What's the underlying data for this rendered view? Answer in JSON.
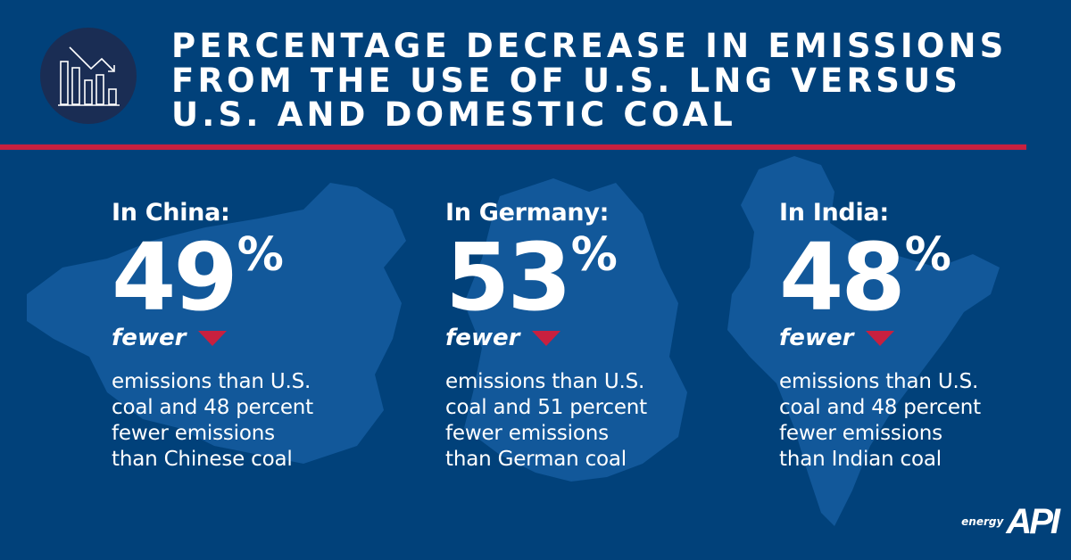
{
  "header": {
    "icon": "declining-bar-chart-icon",
    "title_lines": [
      "Percentage decrease in emissions",
      "from the use of U.S. LNG versus",
      "U.S. and domestic coal"
    ]
  },
  "colors": {
    "background": "#01417a",
    "accent_red": "#c8203f",
    "icon_circle": "#1a2d54",
    "map_fill": "#12589a"
  },
  "columns": [
    {
      "label": "In China:",
      "value": "49",
      "unit": "%",
      "qualifier": "fewer",
      "indicator": "down-triangle-icon",
      "description": "emissions than U.S. coal and 48 percent fewer emissions than Chinese coal",
      "description_lines": [
        "emissions than U.S.",
        "coal and 48 percent",
        "fewer emissions",
        "than Chinese coal"
      ]
    },
    {
      "label": "In Germany:",
      "value": "53",
      "unit": "%",
      "qualifier": "fewer",
      "indicator": "down-triangle-icon",
      "description_lines": [
        "emissions than U.S.",
        "coal and 51 percent",
        "fewer emissions",
        "than German coal"
      ]
    },
    {
      "label": "In India:",
      "value": "48",
      "unit": "%",
      "qualifier": "fewer",
      "indicator": "down-triangle-icon",
      "description_lines": [
        "emissions than U.S.",
        "coal and 48 percent",
        "fewer emissions",
        "than Indian coal"
      ]
    }
  ],
  "logo": {
    "prefix": "energy",
    "name": "API"
  }
}
